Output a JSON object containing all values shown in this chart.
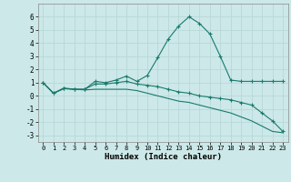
{
  "xlabel": "Humidex (Indice chaleur)",
  "background_color": "#cce8e8",
  "grid_color": "#b8d8d8",
  "line_color": "#1a7a6e",
  "x_values": [
    0,
    1,
    2,
    3,
    4,
    5,
    6,
    7,
    8,
    9,
    10,
    11,
    12,
    13,
    14,
    15,
    16,
    17,
    18,
    19,
    20,
    21,
    22,
    23
  ],
  "line1": [
    1.0,
    0.2,
    0.6,
    0.5,
    0.5,
    1.1,
    1.0,
    1.2,
    1.5,
    1.1,
    1.55,
    2.9,
    4.3,
    5.3,
    6.0,
    5.5,
    4.7,
    3.0,
    1.2,
    1.1,
    1.1,
    1.1,
    1.1,
    1.1
  ],
  "line2": [
    1.0,
    0.2,
    0.55,
    0.5,
    0.5,
    0.9,
    0.9,
    1.0,
    1.1,
    0.9,
    0.8,
    0.7,
    0.5,
    0.3,
    0.2,
    0.0,
    -0.1,
    -0.2,
    -0.3,
    -0.5,
    -0.7,
    -1.3,
    -1.9,
    -2.7
  ],
  "line3": [
    1.0,
    0.2,
    0.55,
    0.5,
    0.45,
    0.5,
    0.5,
    0.5,
    0.5,
    0.4,
    0.2,
    0.0,
    -0.2,
    -0.4,
    -0.5,
    -0.7,
    -0.9,
    -1.1,
    -1.3,
    -1.6,
    -1.9,
    -2.3,
    -2.7,
    -2.8
  ],
  "ylim": [
    -3.5,
    7.0
  ],
  "xlim": [
    -0.5,
    23.5
  ],
  "yticks": [
    -3,
    -2,
    -1,
    0,
    1,
    2,
    3,
    4,
    5,
    6
  ],
  "xticks": [
    0,
    1,
    2,
    3,
    4,
    5,
    6,
    7,
    8,
    9,
    10,
    11,
    12,
    13,
    14,
    15,
    16,
    17,
    18,
    19,
    20,
    21,
    22,
    23
  ]
}
